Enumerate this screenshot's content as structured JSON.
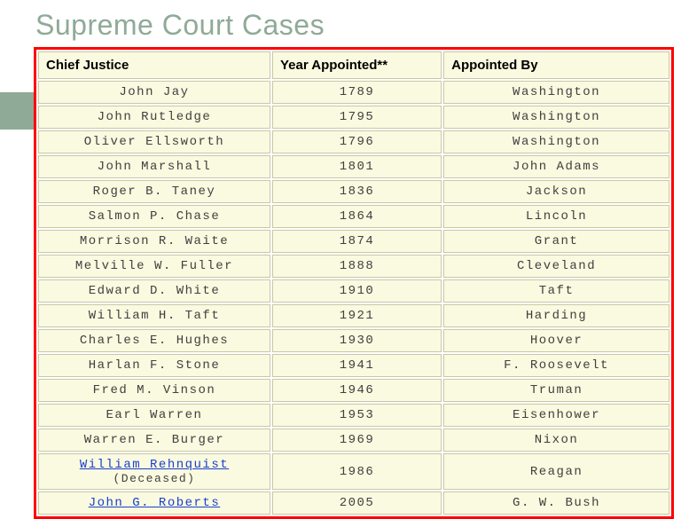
{
  "title": "Supreme Court Cases",
  "colors": {
    "title_color": "#8faa97",
    "accent_bar": "#8faa97",
    "table_border": "#ff0000",
    "cell_bg": "#fafae0",
    "cell_border": "#c8c8a8",
    "text_color": "#404040",
    "link_color": "#1a3ecf"
  },
  "table": {
    "columns": [
      "Chief Justice",
      "Year Appointed**",
      "Appointed By"
    ],
    "column_widths_pct": [
      37,
      27,
      36
    ],
    "header_fontsize": 15,
    "cell_fontsize": 14,
    "cell_font": "Courier New",
    "rows": [
      {
        "justice": "John Jay",
        "year": "1789",
        "by": "Washington",
        "link": false
      },
      {
        "justice": "John Rutledge",
        "year": "1795",
        "by": "Washington",
        "link": false
      },
      {
        "justice": "Oliver Ellsworth",
        "year": "1796",
        "by": "Washington",
        "link": false
      },
      {
        "justice": "John Marshall",
        "year": "1801",
        "by": "John Adams",
        "link": false
      },
      {
        "justice": "Roger B. Taney",
        "year": "1836",
        "by": "Jackson",
        "link": false
      },
      {
        "justice": "Salmon P. Chase",
        "year": "1864",
        "by": "Lincoln",
        "link": false
      },
      {
        "justice": "Morrison R. Waite",
        "year": "1874",
        "by": "Grant",
        "link": false
      },
      {
        "justice": "Melville W. Fuller",
        "year": "1888",
        "by": "Cleveland",
        "link": false
      },
      {
        "justice": "Edward D. White",
        "year": "1910",
        "by": "Taft",
        "link": false
      },
      {
        "justice": "William H. Taft",
        "year": "1921",
        "by": "Harding",
        "link": false
      },
      {
        "justice": "Charles E. Hughes",
        "year": "1930",
        "by": "Hoover",
        "link": false
      },
      {
        "justice": "Harlan F. Stone",
        "year": "1941",
        "by": "F. Roosevelt",
        "link": false
      },
      {
        "justice": "Fred M. Vinson",
        "year": "1946",
        "by": "Truman",
        "link": false
      },
      {
        "justice": "Earl Warren",
        "year": "1953",
        "by": "Eisenhower",
        "link": false
      },
      {
        "justice": "Warren E. Burger",
        "year": "1969",
        "by": "Nixon",
        "link": false
      },
      {
        "justice": "William Rehnquist",
        "sub": "(Deceased)",
        "year": "1986",
        "by": "Reagan",
        "link": true
      },
      {
        "justice": "John G. Roberts",
        "year": "2005",
        "by": "G. W. Bush",
        "link": true
      }
    ]
  }
}
